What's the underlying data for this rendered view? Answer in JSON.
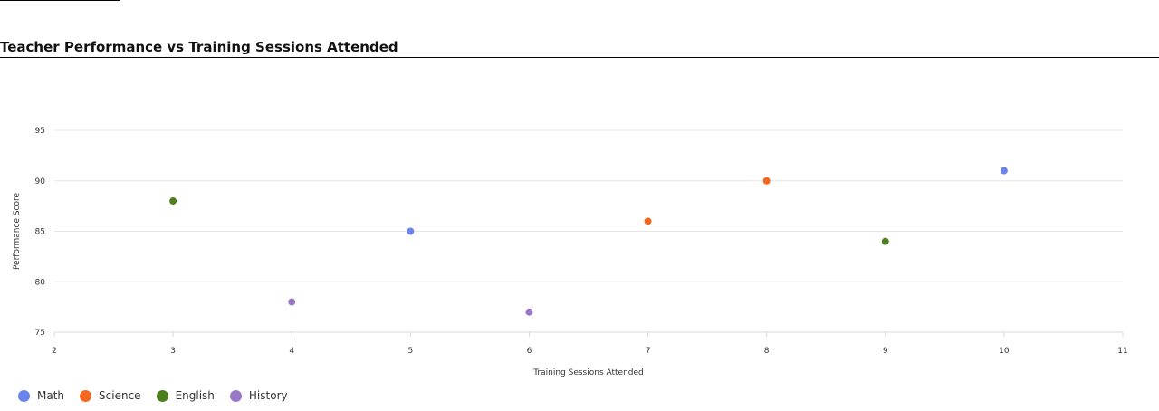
{
  "title": "Teacher Performance vs Training Sessions Attended",
  "chart_data": {
    "type": "scatter",
    "title": "Teacher Performance vs Training Sessions Attended",
    "xlabel": "Training Sessions Attended",
    "ylabel": "Performance Score",
    "xlim": [
      2,
      11
    ],
    "ylim": [
      75,
      95
    ],
    "xticks": [
      "2",
      "3",
      "4",
      "5",
      "6",
      "7",
      "8",
      "9",
      "10",
      "11"
    ],
    "yticks": [
      "75",
      "80",
      "85",
      "90",
      "95"
    ],
    "grid": "horizontal",
    "legend_position": "bottom-left",
    "series": [
      {
        "name": "Math",
        "color": "#6b84ec",
        "points": [
          [
            5,
            85
          ],
          [
            10,
            91
          ]
        ]
      },
      {
        "name": "Science",
        "color": "#f2681f",
        "points": [
          [
            7,
            86
          ],
          [
            8,
            90
          ]
        ]
      },
      {
        "name": "English",
        "color": "#4d7f1f",
        "points": [
          [
            3,
            88
          ],
          [
            9,
            84
          ]
        ]
      },
      {
        "name": "History",
        "color": "#9a78c8",
        "points": [
          [
            4,
            78
          ],
          [
            6,
            77
          ]
        ]
      }
    ]
  }
}
